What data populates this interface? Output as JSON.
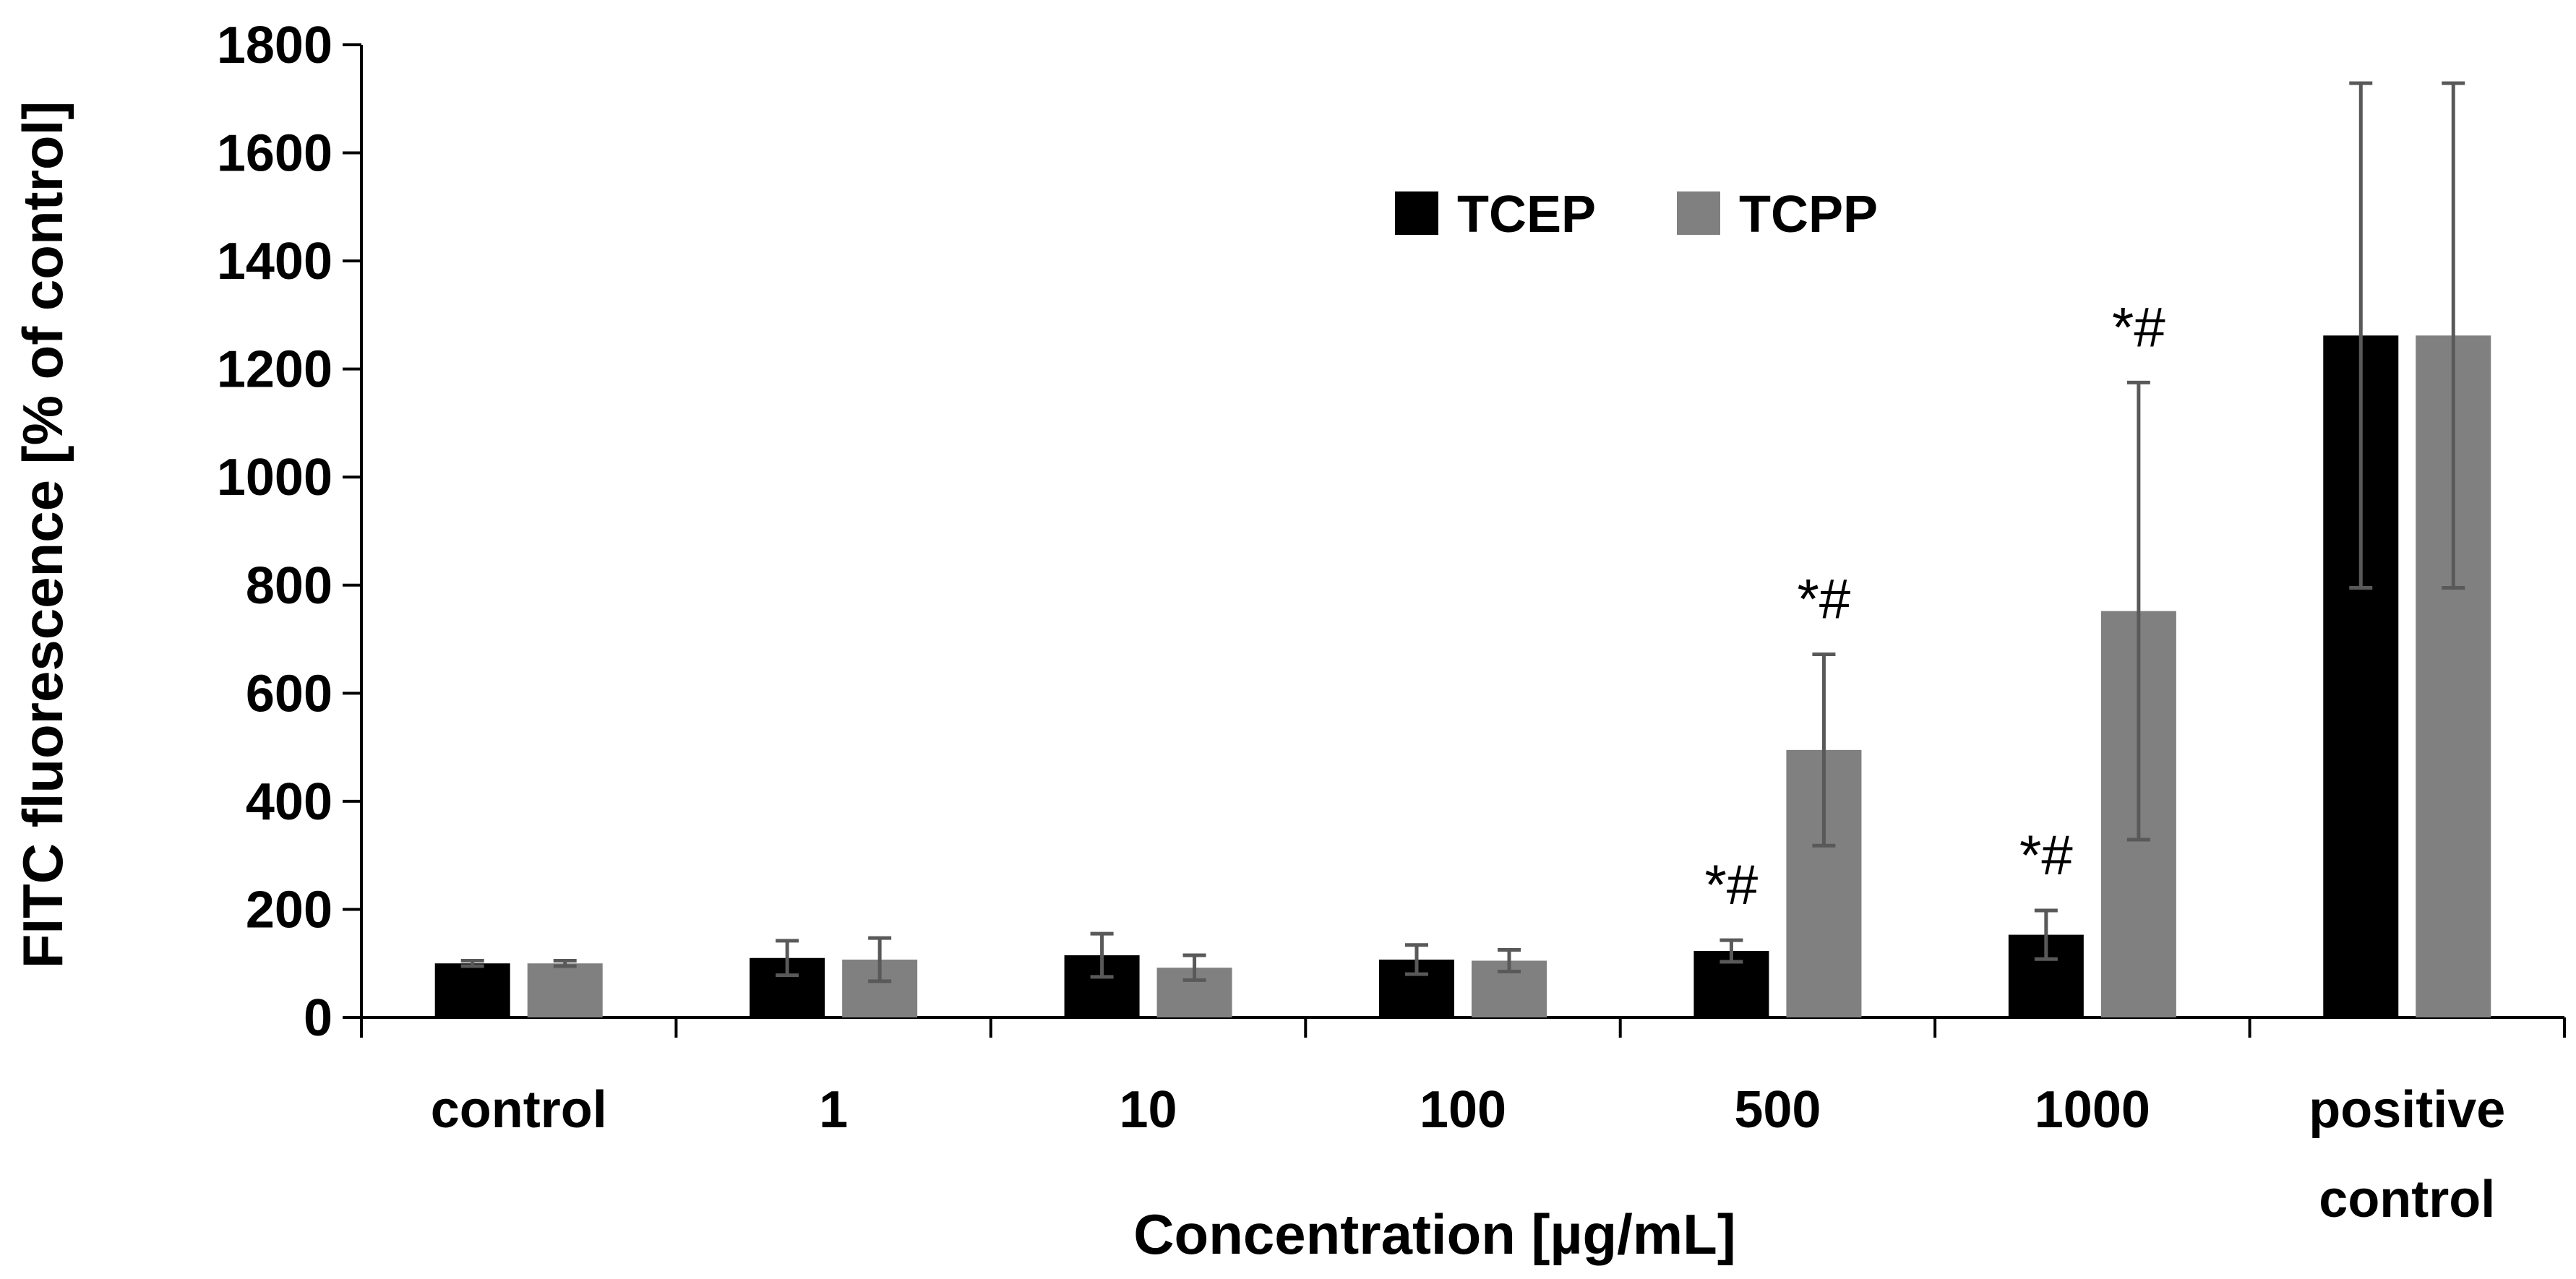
{
  "chart_data": {
    "type": "bar",
    "title": "",
    "xlabel": "Concentration [µg/mL]",
    "ylabel": "FITC fluorescence [% of control]",
    "ylim": [
      0,
      1800
    ],
    "yticks": [
      0,
      200,
      400,
      600,
      800,
      1000,
      1200,
      1400,
      1600,
      1800
    ],
    "categories": [
      [
        "control"
      ],
      [
        "1"
      ],
      [
        "10"
      ],
      [
        "100"
      ],
      [
        "500"
      ],
      [
        "1000"
      ],
      [
        "positive",
        "control"
      ]
    ],
    "series": [
      {
        "name": "TCEP",
        "color": "#000000",
        "values": [
          100,
          110,
          115,
          107,
          123,
          153,
          1262
        ],
        "errors": [
          5,
          32,
          40,
          27,
          20,
          45,
          467
        ]
      },
      {
        "name": "TCPP",
        "color": "#808080",
        "values": [
          100,
          107,
          92,
          105,
          495,
          752,
          1262
        ],
        "errors": [
          5,
          40,
          23,
          20,
          177,
          423,
          467
        ]
      }
    ],
    "annotations": [
      {
        "text": "*#",
        "category": "500",
        "series": "TCEP"
      },
      {
        "text": "*#",
        "category": "500",
        "series": "TCPP"
      },
      {
        "text": "*#",
        "category": "1000",
        "series": "TCEP"
      },
      {
        "text": "*#",
        "category": "1000",
        "series": "TCPP"
      }
    ],
    "legend_position": "top-center",
    "error_bar_color": "#595959",
    "axis_color": "#000000"
  }
}
